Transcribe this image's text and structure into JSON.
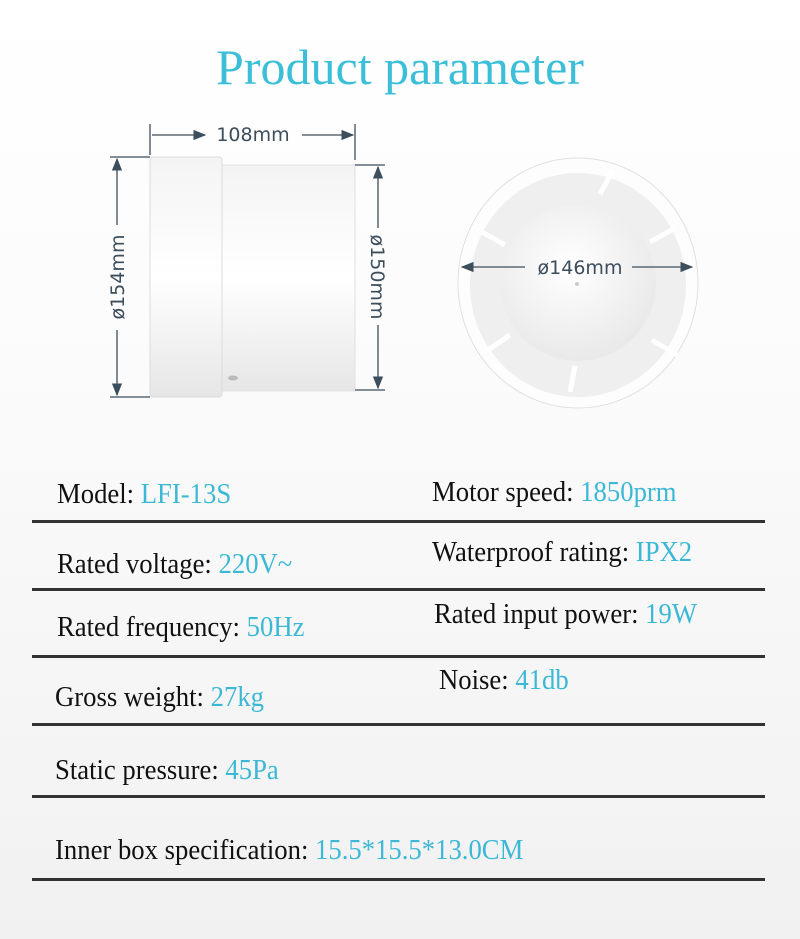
{
  "title": "Product parameter",
  "colors": {
    "title": "#3bbfd8",
    "value": "#3bb8d6",
    "label": "#111111"
  },
  "dimensions": {
    "length": "108mm",
    "outer_diameter": "ø154mm",
    "duct_diameter": "ø150mm",
    "inner_diameter": "ø146mm"
  },
  "specs": [
    {
      "label": "Model:",
      "value": "LFI-13S"
    },
    {
      "label": "Motor speed:",
      "value": "1850prm"
    },
    {
      "label": "Rated voltage:",
      "value": "220V~"
    },
    {
      "label": "Waterproof rating:",
      "value": "IPX2"
    },
    {
      "label": "Rated frequency:",
      "value": "50Hz"
    },
    {
      "label": "Rated input power:",
      "value": "19W"
    },
    {
      "label": "Gross weight:",
      "value": "27kg"
    },
    {
      "label": "Noise:",
      "value": "41db"
    },
    {
      "label": "Static pressure:",
      "value": "45Pa"
    },
    {
      "label": "Inner box specification:",
      "value": "15.5*15.5*13.0CM"
    }
  ]
}
